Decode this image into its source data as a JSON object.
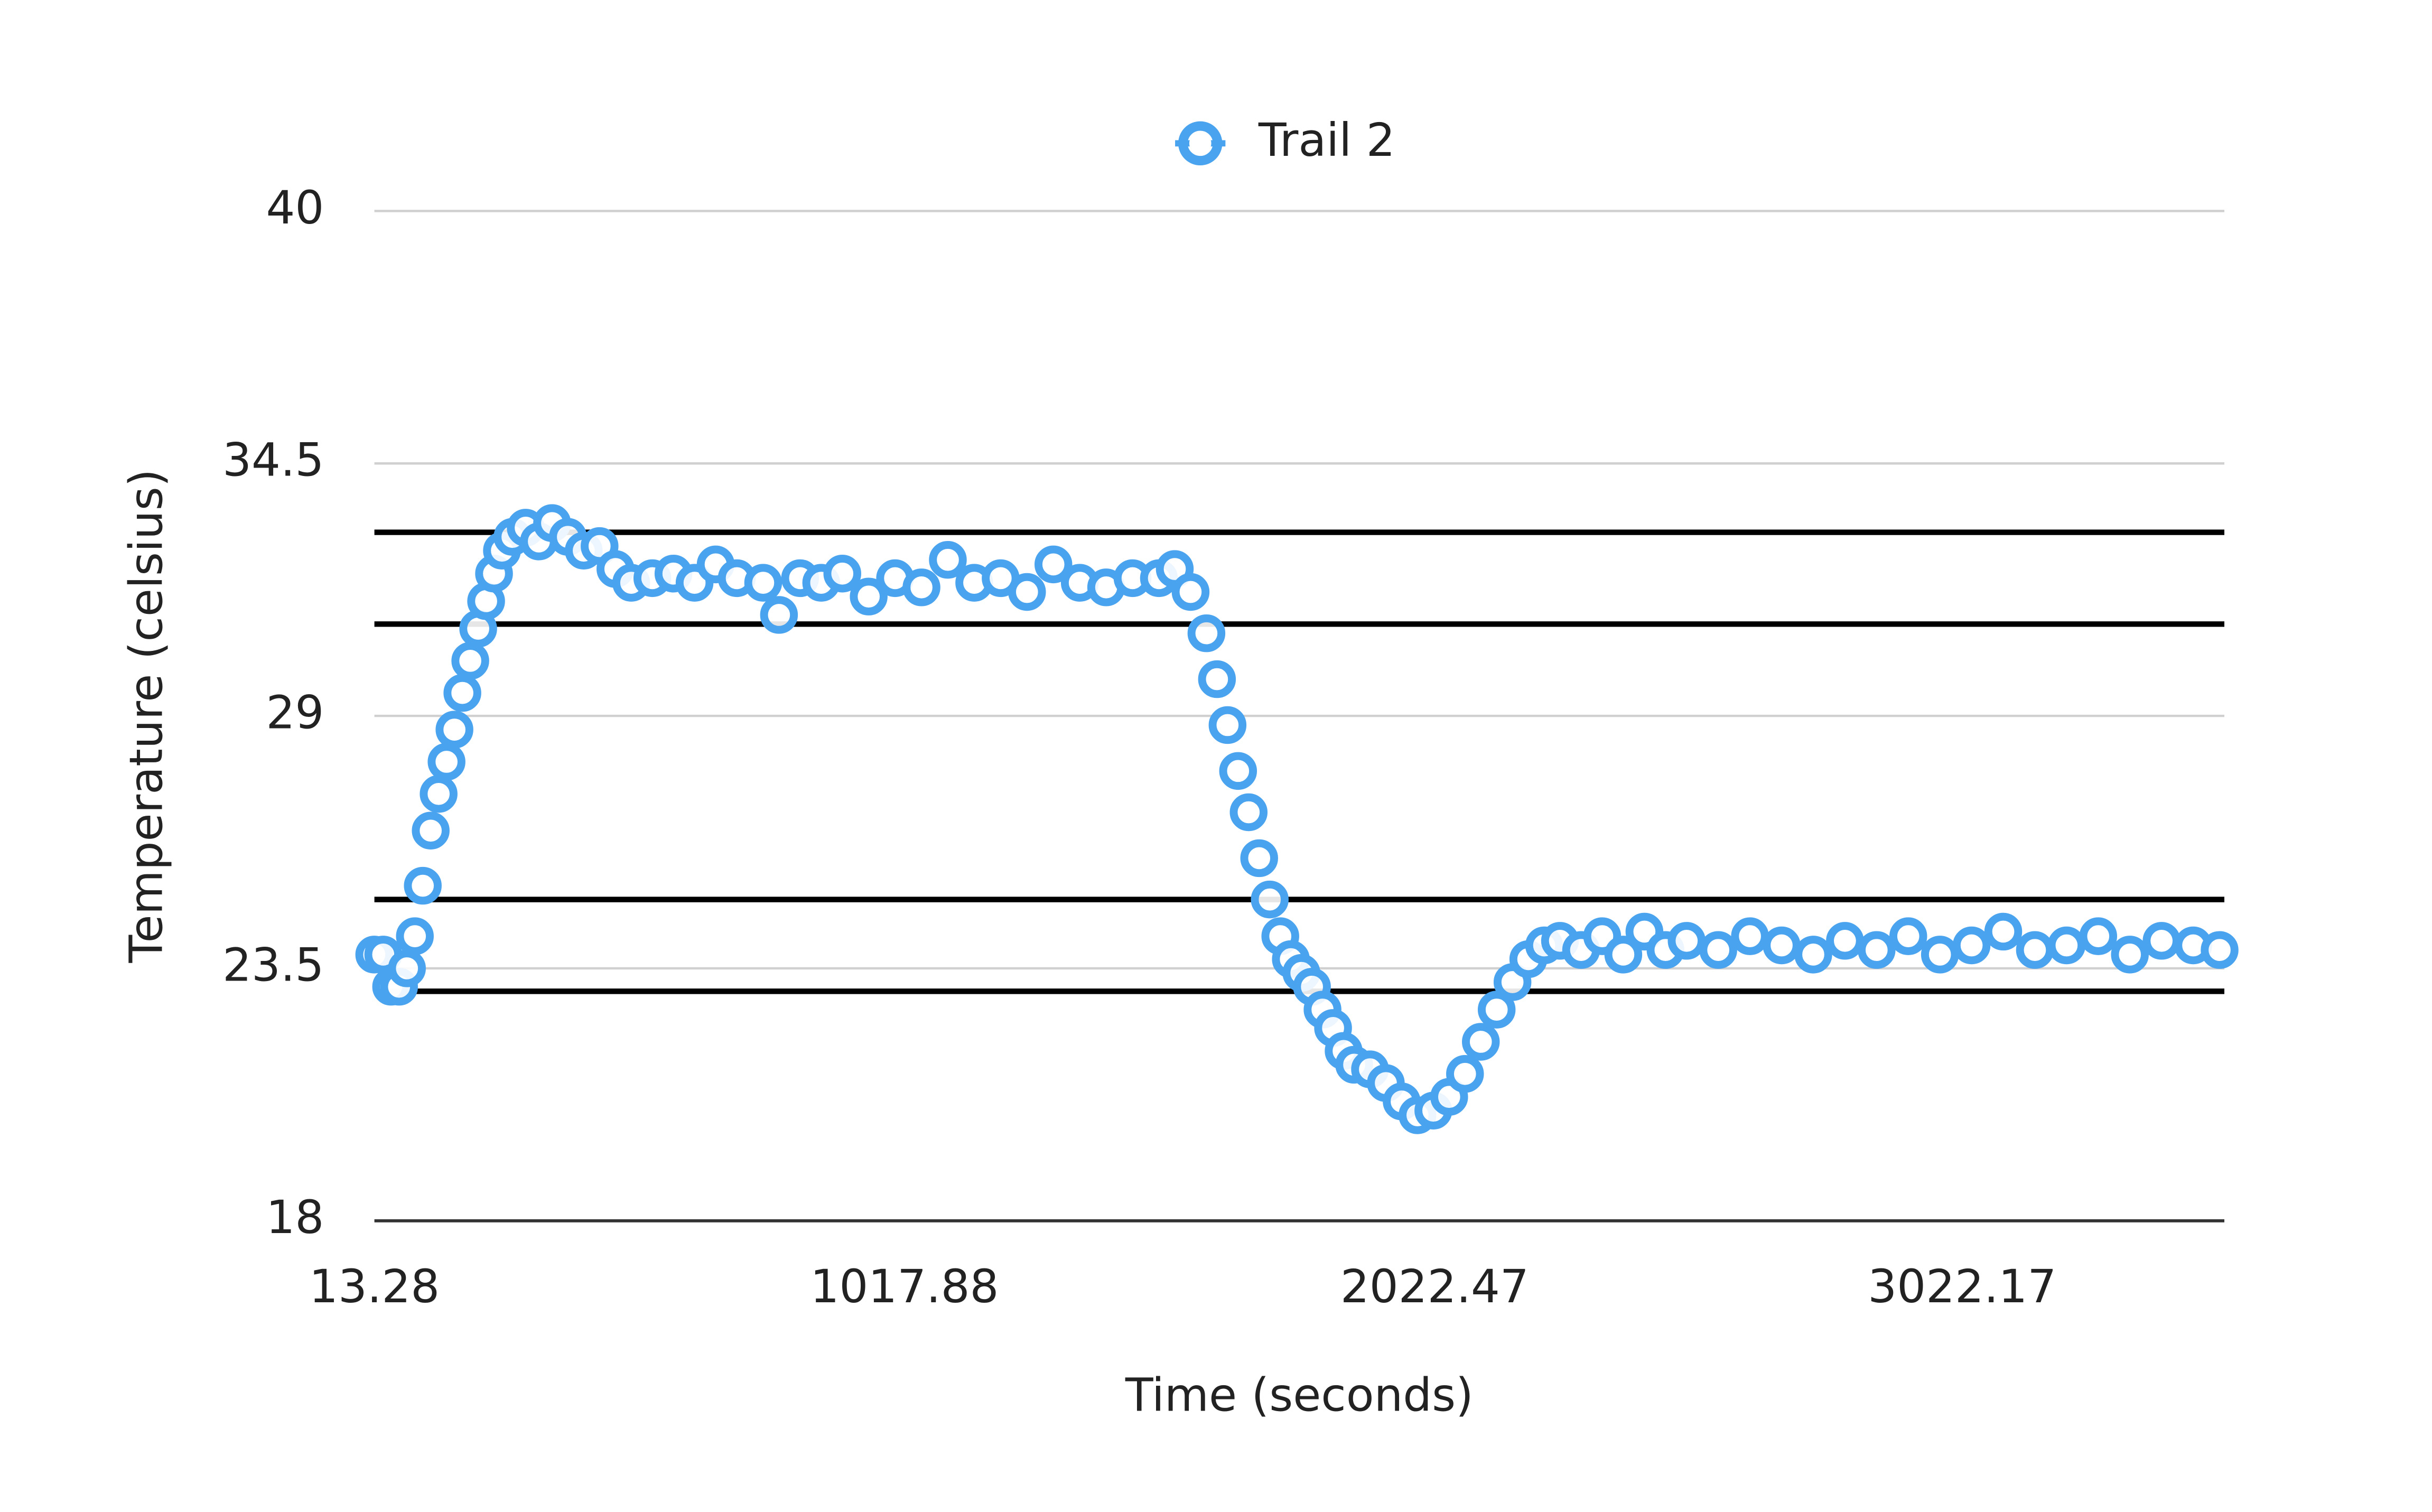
{
  "chart_data": {
    "type": "scatter",
    "x_label": "Time (seconds)",
    "y_label": "Temperature (celsius)",
    "xlim": [
      13.28,
      3519
    ],
    "xticks": [
      13.28,
      1017.88,
      2022.47,
      3022.17
    ],
    "ylim": [
      18,
      40
    ],
    "yticks": [
      18,
      23.5,
      29,
      34.5,
      40
    ],
    "grid": true,
    "legend": "top",
    "reference_lines": [
      33,
      31,
      25,
      23
    ],
    "reference_color": "#000000",
    "series": [
      {
        "name": "Trail 2",
        "color": "#4aa3ee",
        "x": [
          13,
          30,
          45,
          60,
          75,
          90,
          105,
          120,
          135,
          150,
          165,
          180,
          195,
          210,
          225,
          240,
          255,
          275,
          300,
          325,
          350,
          380,
          410,
          440,
          470,
          500,
          540,
          580,
          620,
          660,
          700,
          750,
          780,
          820,
          860,
          900,
          950,
          1000,
          1050,
          1100,
          1150,
          1200,
          1250,
          1300,
          1350,
          1400,
          1450,
          1500,
          1530,
          1560,
          1590,
          1610,
          1630,
          1650,
          1670,
          1690,
          1710,
          1730,
          1750,
          1770,
          1790,
          1810,
          1830,
          1850,
          1870,
          1900,
          1930,
          1960,
          1990,
          2020,
          2050,
          2080,
          2110,
          2140,
          2170,
          2200,
          2230,
          2260,
          2300,
          2340,
          2380,
          2420,
          2460,
          2500,
          2560,
          2620,
          2680,
          2740,
          2800,
          2860,
          2920,
          2980,
          3040,
          3100,
          3160,
          3220,
          3280,
          3340,
          3400,
          3460,
          3510
        ],
        "values": [
          23.8,
          23.8,
          23.1,
          23.1,
          23.5,
          24.2,
          25.3,
          26.5,
          27.3,
          28.0,
          28.7,
          29.5,
          30.2,
          30.9,
          31.5,
          32.1,
          32.6,
          32.9,
          33.1,
          32.8,
          33.2,
          32.9,
          32.6,
          32.7,
          32.2,
          31.9,
          32.0,
          32.1,
          31.9,
          32.3,
          32.0,
          31.9,
          31.2,
          32.0,
          31.9,
          32.1,
          31.6,
          32.0,
          31.8,
          32.4,
          31.9,
          32.0,
          31.7,
          32.3,
          31.9,
          31.8,
          32.0,
          32.0,
          32.2,
          31.7,
          30.8,
          29.8,
          28.8,
          27.8,
          26.9,
          25.9,
          25.0,
          24.2,
          23.7,
          23.4,
          23.1,
          22.6,
          22.2,
          21.7,
          21.4,
          21.3,
          21.0,
          20.6,
          20.3,
          20.4,
          20.7,
          21.2,
          21.9,
          22.6,
          23.2,
          23.7,
          24.0,
          24.1,
          23.9,
          24.2,
          23.8,
          24.3,
          23.9,
          24.1,
          23.9,
          24.2,
          24.0,
          23.8,
          24.1,
          23.9,
          24.2,
          23.8,
          24.0,
          24.3,
          23.9,
          24.0,
          24.2,
          23.8,
          24.1,
          24.0,
          23.9
        ]
      }
    ]
  }
}
